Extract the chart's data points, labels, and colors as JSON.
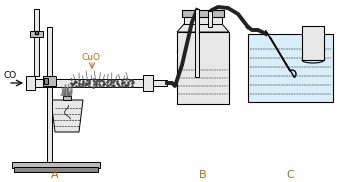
{
  "bg_color": "#ffffff",
  "black": "#000000",
  "orange": "#cc6600",
  "gray_light": "#e8e8e8",
  "gray_mid": "#bbbbbb",
  "gray_dark": "#888888",
  "dark": "#333333",
  "label_A": "A",
  "label_B": "B",
  "label_C": "C",
  "label_CO": "CO",
  "label_CuO": "CuO",
  "figsize": [
    3.43,
    1.82
  ],
  "dpi": 100
}
